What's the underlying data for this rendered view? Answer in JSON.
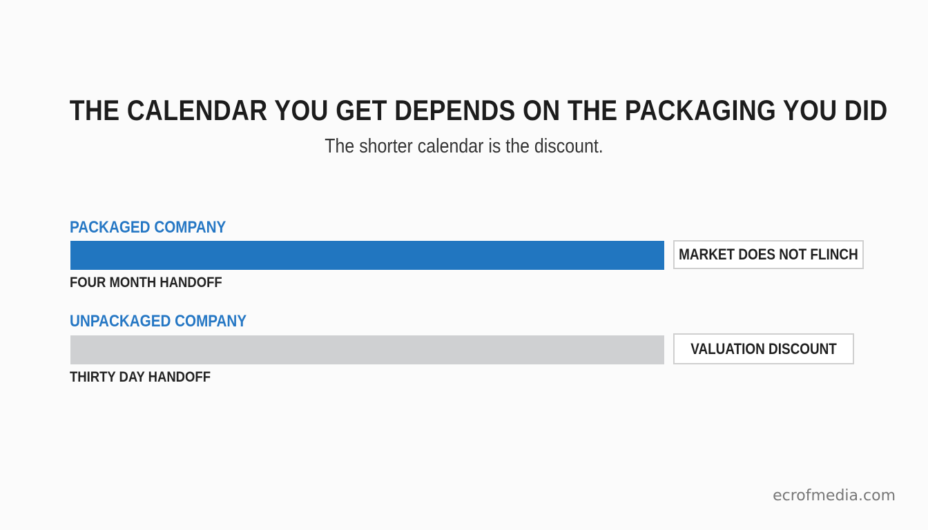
{
  "title": "THE CALENDAR YOU GET DEPENDS ON THE PACKAGING YOU DID",
  "subtitle": "The shorter calendar is the discount.",
  "rows": [
    {
      "label": "PACKAGED COMPANY",
      "caption": "FOUR MONTH HANDOFF",
      "tag": "MARKET DOES NOT FLINCH",
      "bar_color": "#2176c0"
    },
    {
      "label": "UNPACKAGED COMPANY",
      "caption": "THIRTY DAY HANDOFF",
      "tag": "VALUATION DISCOUNT",
      "bar_color": "#cfd0d2"
    }
  ],
  "colors": {
    "accent": "#2577c4",
    "background": "#fbfbfb"
  },
  "watermark": "ecrofmedia.com"
}
